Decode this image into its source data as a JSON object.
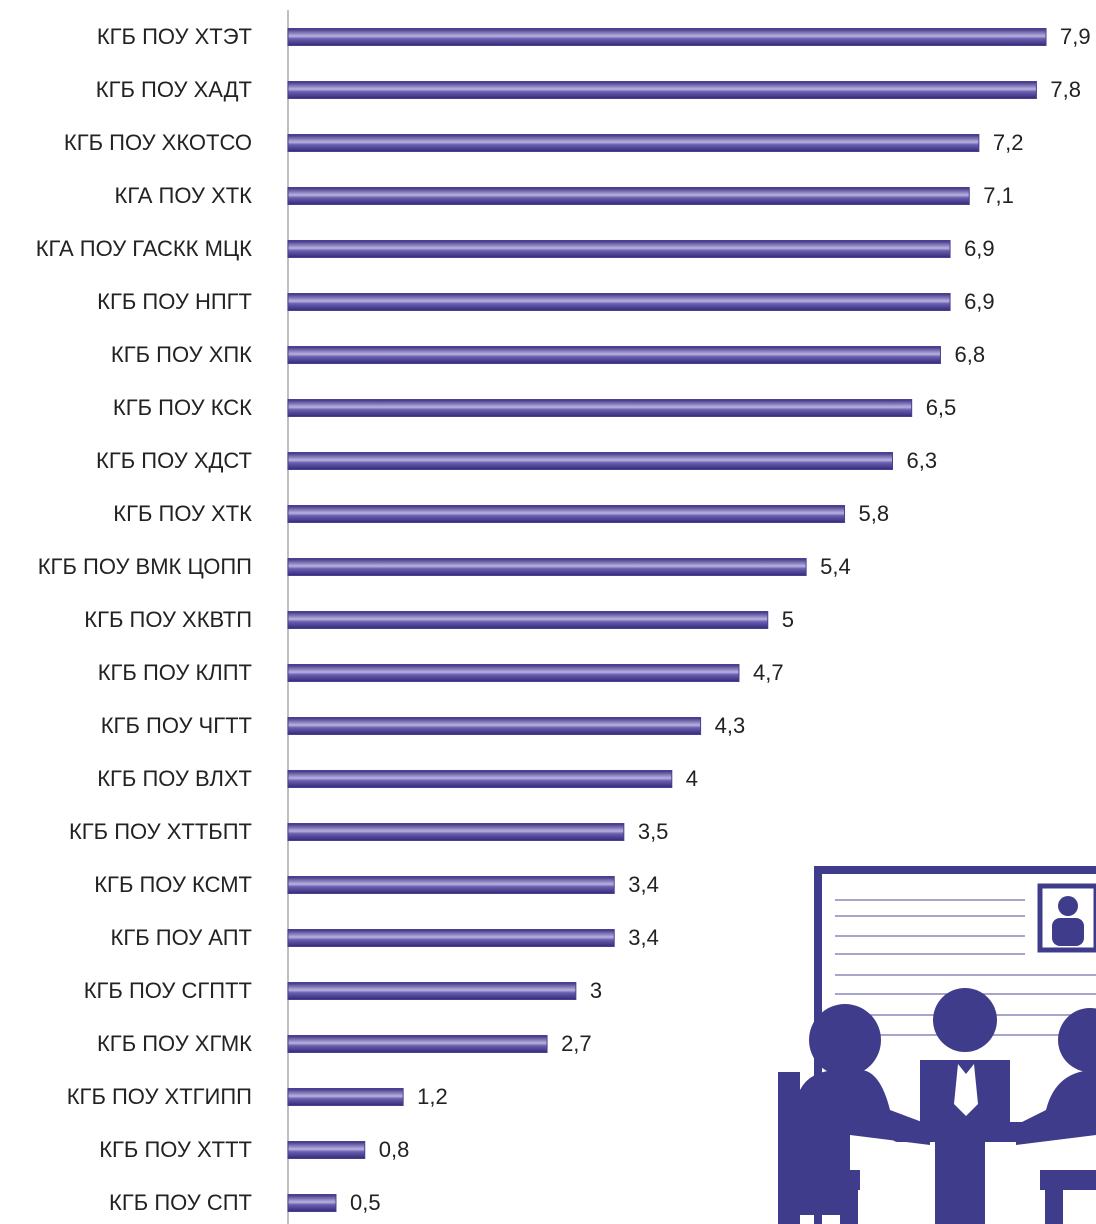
{
  "chart_data": {
    "type": "bar",
    "orientation": "horizontal",
    "categories": [
      "КГБ ПОУ ХТЭТ",
      "КГБ ПОУ ХАДТ",
      "КГБ ПОУ ХКОТСО",
      "КГА ПОУ ХТК",
      "КГА ПОУ ГАСКК МЦК",
      "КГБ ПОУ НПГТ",
      "КГБ ПОУ ХПК",
      "КГБ ПОУ КСК",
      "КГБ ПОУ ХДСТ",
      "КГБ ПОУ ХТК",
      "КГБ ПОУ ВМК  ЦОПП",
      "КГБ ПОУ ХКВТП",
      "КГБ ПОУ КЛПТ",
      "КГБ ПОУ ЧГТТ",
      "КГБ ПОУ ВЛХТ",
      "КГБ ПОУ ХТТБПТ",
      "КГБ ПОУ КСМТ",
      "КГБ ПОУ АПТ",
      "КГБ ПОУ СГПТТ",
      "КГБ ПОУ ХГМК",
      "КГБ ПОУ ХТГИПП",
      "КГБ ПОУ ХТТТ",
      "КГБ ПОУ СПТ"
    ],
    "values": [
      7.9,
      7.8,
      7.2,
      7.1,
      6.9,
      6.9,
      6.8,
      6.5,
      6.3,
      5.8,
      5.4,
      5,
      4.7,
      4.3,
      4,
      3.5,
      3.4,
      3.4,
      3,
      2.7,
      1.2,
      0.8,
      0.5
    ],
    "value_labels": [
      "7,9",
      "7,8",
      "7,2",
      "7,1",
      "6,9",
      "6,9",
      "6,8",
      "6,5",
      "6,3",
      "5,8",
      "5,4",
      "5",
      "4,7",
      "4,3",
      "4",
      "3,5",
      "3,4",
      "3,4",
      "3",
      "2,7",
      "1,2",
      "0,8",
      "0,5"
    ],
    "color": "#4a3f96",
    "xlim": [
      0,
      8.4
    ]
  }
}
